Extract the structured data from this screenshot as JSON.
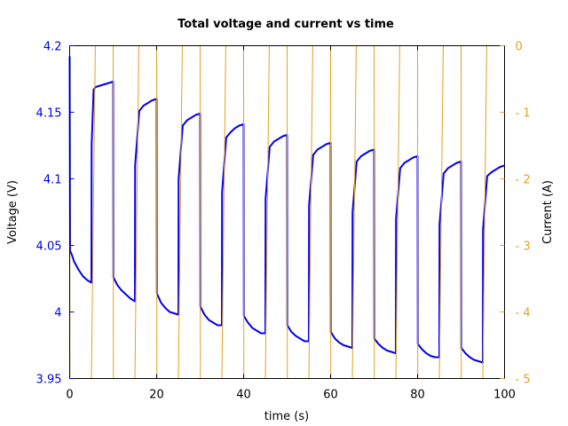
{
  "chart_data": {
    "type": "line",
    "title": "Total voltage and current vs time",
    "xlabel": "time (s)",
    "ylabel": "Voltage (V)",
    "y2label": "Current (A)",
    "xlim": [
      0,
      100
    ],
    "ylim": [
      3.95,
      4.2
    ],
    "y2lim": [
      -5,
      0
    ],
    "x_ticks": [
      0,
      20,
      40,
      60,
      80,
      100
    ],
    "y_ticks": [
      3.95,
      4,
      4.05,
      4.1,
      4.15,
      4.2
    ],
    "y_tick_labels": [
      "3.95",
      "4",
      "4.05",
      "4.1",
      "4.15",
      "4.2"
    ],
    "y2_ticks": [
      -5,
      -4,
      -3,
      -2,
      -1,
      0
    ],
    "grid": false,
    "colors": {
      "voltage": "#0000ee",
      "current": "#e6a020",
      "axis_left": "#0000ee",
      "axis_right": "#e6a020"
    },
    "series": [
      {
        "axis": "left",
        "x": [
          0,
          0.1,
          0.5,
          1,
          2,
          3,
          4,
          5,
          5.05,
          5.5,
          6,
          7,
          8,
          9,
          10,
          10.05,
          11,
          12,
          13,
          14,
          15,
          15.05,
          16,
          17,
          18,
          19,
          20,
          20.05,
          21,
          22,
          23,
          24,
          25,
          25.05,
          26,
          27,
          28,
          29,
          30,
          30.05,
          31,
          32,
          33,
          34,
          35,
          35.05,
          36,
          37,
          38,
          39,
          40,
          40.05,
          41,
          42,
          43,
          44,
          45,
          45.05,
          46,
          47,
          48,
          49,
          50,
          50.05,
          51,
          52,
          53,
          54,
          55,
          55.05,
          56,
          57,
          58,
          59,
          60,
          60.05,
          61,
          62,
          63,
          64,
          65,
          65.05,
          66,
          67,
          68,
          69,
          70,
          70.05,
          71,
          72,
          73,
          74,
          75,
          75.05,
          76,
          77,
          78,
          79,
          80,
          80.05,
          81,
          82,
          83,
          84,
          85,
          85.05,
          86,
          87,
          88,
          89,
          90,
          90.05,
          91,
          92,
          93,
          94,
          95,
          95.05,
          96,
          97,
          98,
          99,
          100
        ],
        "values": [
          4.192,
          4.046,
          4.043,
          4.038,
          4.032,
          4.027,
          4.024,
          4.022,
          4.125,
          4.167,
          4.169,
          4.17,
          4.171,
          4.172,
          4.173,
          4.026,
          4.02,
          4.016,
          4.013,
          4.01,
          4.008,
          4.11,
          4.151,
          4.155,
          4.157,
          4.159,
          4.16,
          4.014,
          4.007,
          4.003,
          4.0,
          3.999,
          3.998,
          4.1,
          4.14,
          4.144,
          4.146,
          4.148,
          4.149,
          4.004,
          3.998,
          3.994,
          3.992,
          3.99,
          3.99,
          4.09,
          4.131,
          4.135,
          4.138,
          4.14,
          4.141,
          3.997,
          3.992,
          3.988,
          3.986,
          3.984,
          3.984,
          4.085,
          4.124,
          4.128,
          4.13,
          4.132,
          4.133,
          3.99,
          3.985,
          3.982,
          3.98,
          3.978,
          3.978,
          4.08,
          4.118,
          4.122,
          4.124,
          4.126,
          4.127,
          3.985,
          3.98,
          3.977,
          3.975,
          3.974,
          3.973,
          4.075,
          4.113,
          4.117,
          4.119,
          4.121,
          4.122,
          3.98,
          3.976,
          3.973,
          3.971,
          3.97,
          3.969,
          4.07,
          4.108,
          4.112,
          4.114,
          4.116,
          4.117,
          3.976,
          3.972,
          3.969,
          3.967,
          3.966,
          3.966,
          4.066,
          4.104,
          4.108,
          4.11,
          4.112,
          4.113,
          3.973,
          3.969,
          3.966,
          3.964,
          3.963,
          3.962,
          4.062,
          4.102,
          4.105,
          4.107,
          4.109,
          4.11
        ]
      },
      {
        "axis": "right",
        "x": [
          0,
          0.05,
          0.2,
          5.0,
          5.9,
          10,
          10.05,
          10.2,
          15.0,
          15.9,
          20,
          20.05,
          20.2,
          25.0,
          25.9,
          30,
          30.05,
          30.2,
          35.0,
          35.9,
          40,
          40.05,
          40.2,
          45.0,
          45.9,
          50,
          50.05,
          50.2,
          55.0,
          55.9,
          60,
          60.05,
          60.2,
          65.0,
          65.9,
          70,
          70.05,
          70.2,
          75.0,
          75.9,
          80,
          80.05,
          80.2,
          85.0,
          85.9,
          90,
          90.05,
          90.2,
          95.0,
          95.9,
          100
        ],
        "values": [
          0,
          -5,
          -5,
          -5,
          0,
          0,
          -5,
          -5,
          -5,
          0,
          0,
          -5,
          -5,
          -5,
          0,
          0,
          -5,
          -5,
          -5,
          0,
          0,
          -5,
          -5,
          -5,
          0,
          0,
          -5,
          -5,
          -5,
          0,
          0,
          -5,
          -5,
          -5,
          0,
          0,
          -5,
          -5,
          -5,
          0,
          0,
          -5,
          -5,
          -5,
          0,
          0,
          -5,
          -5,
          -5,
          0,
          0
        ]
      }
    ]
  }
}
